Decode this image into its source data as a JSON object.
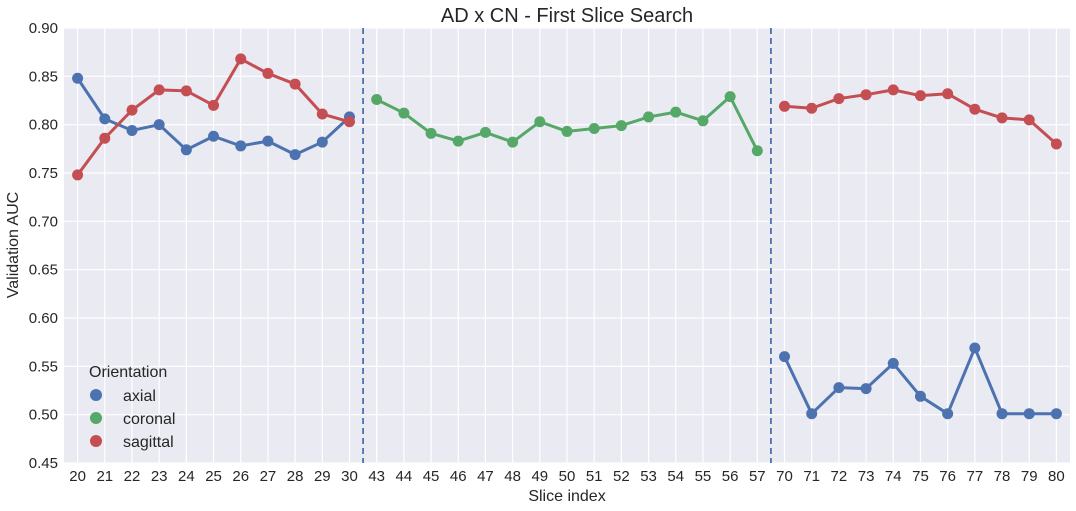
{
  "chart_data": {
    "type": "line",
    "title": "AD x CN - First Slice Search",
    "xlabel": "Slice index",
    "ylabel": "Validation AUC",
    "ylim": [
      0.45,
      0.9
    ],
    "yticks": [
      "0.45",
      "0.50",
      "0.55",
      "0.60",
      "0.65",
      "0.70",
      "0.75",
      "0.80",
      "0.85",
      "0.90"
    ],
    "categories": [
      "20",
      "21",
      "22",
      "23",
      "24",
      "25",
      "26",
      "27",
      "28",
      "29",
      "30",
      "43",
      "44",
      "45",
      "46",
      "47",
      "48",
      "49",
      "50",
      "51",
      "52",
      "53",
      "54",
      "55",
      "56",
      "57",
      "70",
      "71",
      "72",
      "73",
      "74",
      "75",
      "76",
      "77",
      "78",
      "79",
      "80"
    ],
    "grid": true,
    "legend": {
      "title": "Orientation",
      "position": "lower-left",
      "entries": [
        "axial",
        "coronal",
        "sagittal"
      ]
    },
    "separators_after": [
      "30",
      "57"
    ],
    "colors": {
      "axial": "#4c72b0",
      "coronal": "#55a868",
      "sagittal": "#c44e52",
      "background": "#eaeaf2",
      "grid": "#ffffff"
    },
    "series": [
      {
        "name": "axial",
        "x": [
          "20",
          "21",
          "22",
          "23",
          "24",
          "25",
          "26",
          "27",
          "28",
          "29",
          "30",
          "70",
          "71",
          "72",
          "73",
          "74",
          "75",
          "76",
          "77",
          "78",
          "79",
          "80"
        ],
        "values": [
          0.848,
          0.806,
          0.794,
          0.8,
          0.774,
          0.788,
          0.778,
          0.783,
          0.769,
          0.782,
          0.808,
          0.56,
          0.501,
          0.528,
          0.527,
          0.553,
          0.519,
          0.501,
          0.569,
          0.501,
          0.501,
          0.501
        ]
      },
      {
        "name": "coronal",
        "x": [
          "43",
          "44",
          "45",
          "46",
          "47",
          "48",
          "49",
          "50",
          "51",
          "52",
          "53",
          "54",
          "55",
          "56",
          "57"
        ],
        "values": [
          0.826,
          0.812,
          0.791,
          0.783,
          0.792,
          0.782,
          0.803,
          0.793,
          0.796,
          0.799,
          0.808,
          0.813,
          0.804,
          0.829,
          0.773
        ]
      },
      {
        "name": "sagittal",
        "x": [
          "20",
          "21",
          "22",
          "23",
          "24",
          "25",
          "26",
          "27",
          "28",
          "29",
          "30",
          "70",
          "71",
          "72",
          "73",
          "74",
          "75",
          "76",
          "77",
          "78",
          "79",
          "80"
        ],
        "values": [
          0.748,
          0.786,
          0.815,
          0.836,
          0.835,
          0.82,
          0.868,
          0.853,
          0.842,
          0.811,
          0.803,
          0.819,
          0.817,
          0.827,
          0.831,
          0.836,
          0.83,
          0.832,
          0.816,
          0.807,
          0.805,
          0.78
        ]
      }
    ]
  }
}
